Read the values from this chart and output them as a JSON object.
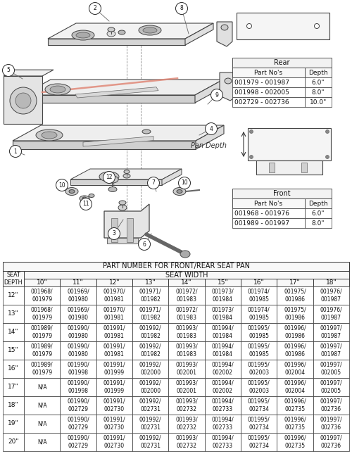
{
  "bg_color": "#ffffff",
  "fig_width": 5.0,
  "fig_height": 6.55,
  "rear_table": {
    "header": "Rear",
    "col1_header": "Part No's",
    "col2_header": "Depth",
    "rows": [
      [
        "001979 - 001987",
        "6.0\""
      ],
      [
        "001998 - 002005",
        "8.0\""
      ],
      [
        "002729 - 002736",
        "10.0\""
      ]
    ]
  },
  "front_table": {
    "header": "Front",
    "col1_header": "Part No's",
    "col2_header": "Depth",
    "rows": [
      [
        "001968 - 001976",
        "6.0\""
      ],
      [
        "001989 - 001997",
        "8.0\""
      ]
    ]
  },
  "main_table": {
    "title": "PART NUMBER FOR FRONT/REAR SEAT PAN",
    "width_labels": [
      "10\"",
      "11\"",
      "12\"",
      "13\"",
      "14\"",
      "15\"",
      "16\"",
      "17\"",
      "18\""
    ],
    "depth_labels": [
      "12\"",
      "13\"",
      "14\"",
      "15\"",
      "16\"",
      "17\"",
      "18\"",
      "19\"",
      "20\""
    ],
    "data": [
      [
        "001968/\n001979",
        "001969/\n001980",
        "001970/\n001981",
        "001971/\n001982",
        "001972/\n001983",
        "001973/\n001984",
        "001974/\n001985",
        "001975/\n001986",
        "001976/\n001987"
      ],
      [
        "001968/\n001979",
        "001969/\n001980",
        "001970/\n001981",
        "001971/\n001982",
        "001972/\n001983",
        "001973/\n001984",
        "001974/\n001985",
        "001975/\n001986",
        "001976/\n001987"
      ],
      [
        "001989/\n001979",
        "001990/\n001980",
        "001991/\n001981",
        "001992/\n001982",
        "001993/\n001983",
        "001994/\n001984",
        "001995/\n001985",
        "001996/\n001986",
        "001997/\n001987"
      ],
      [
        "001989/\n001979",
        "001990/\n001980",
        "001991/\n001981",
        "001992/\n001982",
        "001993/\n001983",
        "001994/\n001984",
        "001995/\n001985",
        "001996/\n001986",
        "001997/\n001987"
      ],
      [
        "001989/\n001979",
        "001990/\n001998",
        "001991/\n001999",
        "001992/\n002000",
        "001993/\n002001",
        "001994/\n002002",
        "001995/\n002003",
        "001996/\n002004",
        "001997/\n002005"
      ],
      [
        "N/A",
        "001990/\n001998",
        "001991/\n001999",
        "001992/\n002000",
        "001993/\n002001",
        "001994/\n002002",
        "001995/\n002003",
        "001996/\n002004",
        "001997/\n002005"
      ],
      [
        "N/A",
        "001990/\n002729",
        "001991/\n002730",
        "001992/\n002731",
        "001993/\n002732",
        "001994/\n002733",
        "001995/\n002734",
        "001996/\n002735",
        "001997/\n002736"
      ],
      [
        "N/A",
        "001990/\n002729",
        "001991/\n002730",
        "001992/\n002731",
        "001993/\n002732",
        "001994/\n002733",
        "001995/\n002734",
        "001996/\n002735",
        "001997/\n002736"
      ],
      [
        "N/A",
        "001990/\n002729",
        "001991/\n002730",
        "001992/\n002731",
        "001993/\n002732",
        "001994/\n002733",
        "001995/\n002734",
        "001996/\n002735",
        "001997/\n002736"
      ]
    ]
  }
}
